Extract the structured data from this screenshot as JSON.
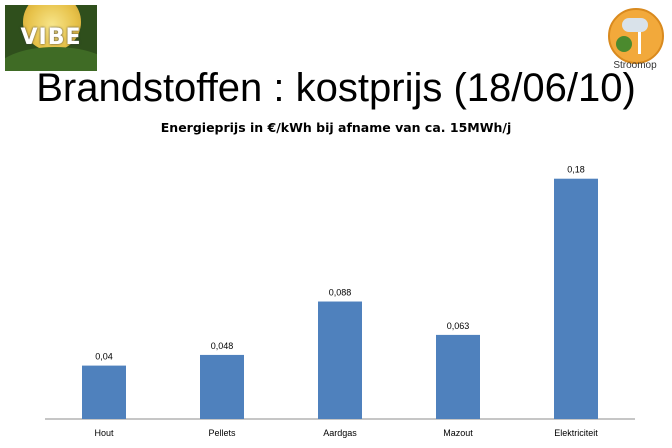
{
  "header": {
    "logo_left": "VIBE",
    "logo_right_label": "Stroomop"
  },
  "chart_data": {
    "type": "bar",
    "title": "Brandstoffen : kostprijs (18/06/10)",
    "subtitle": "Energieprijs in €/kWh bij afname van ca. 15MWh/j",
    "categories": [
      "Hout",
      "Pellets",
      "Aardgas",
      "Mazout",
      "Elektriciteit"
    ],
    "values": [
      0.04,
      0.048,
      0.088,
      0.063,
      0.18
    ],
    "value_labels": [
      "0,04",
      "0,048",
      "0,088",
      "0,063",
      "0,18"
    ],
    "ylim": [
      0,
      0.2
    ],
    "grid": false,
    "legend": "none",
    "bar_color": "#4f81bd"
  }
}
